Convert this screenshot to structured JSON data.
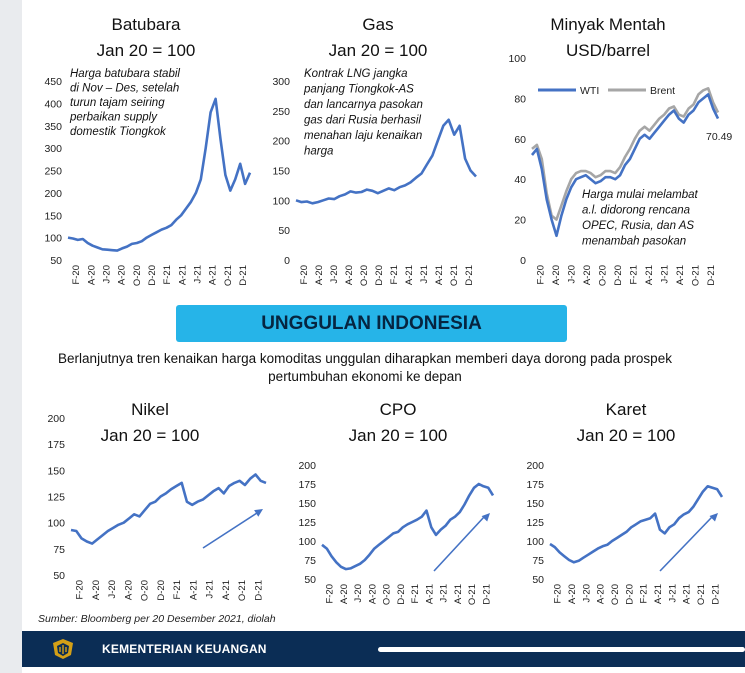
{
  "banner": "UNGGULAN INDONESIA",
  "description": "Berlanjutnya tren kenaikan harga komoditas unggulan diharapkan memberi daya dorong pada prospek pertumbuhan ekonomi ke depan",
  "source": "Sumber: Bloomberg per 20 Desember 2021, diolah",
  "footer": {
    "org": "KEMENTERIAN KEUANGAN",
    "logo_icon": "kemenkeu-emblem-icon"
  },
  "colors": {
    "line": "#4472c4",
    "brent": "#a6a6a6",
    "banner": "#26b4e8",
    "footer": "#0b2d55"
  },
  "chart_data": [
    {
      "id": "batubara",
      "type": "line",
      "title": "Batubara",
      "subtitle": "Jan 20 = 100",
      "annotation": [
        "Harga batubara stabil",
        "di Nov – Des, setelah",
        "turun tajam seiring",
        "perbaikan supply",
        "domestik Tiongkok"
      ],
      "ylim": [
        50,
        450
      ],
      "yticks": [
        50,
        100,
        150,
        200,
        250,
        300,
        350,
        400,
        450
      ],
      "xticks": [
        "F-20",
        "A-20",
        "J-20",
        "A-20",
        "O-20",
        "D-20",
        "F-21",
        "A-21",
        "J-21",
        "A-21",
        "O-21",
        "D-21"
      ],
      "series": [
        {
          "values": [
            100,
            98,
            95,
            97,
            88,
            82,
            78,
            74,
            73,
            72,
            71,
            76,
            80,
            86,
            88,
            92,
            100,
            106,
            112,
            118,
            122,
            128,
            140,
            150,
            165,
            180,
            200,
            230,
            300,
            380,
            410,
            320,
            240,
            205,
            230,
            265,
            220,
            245
          ]
        }
      ]
    },
    {
      "id": "gas",
      "type": "line",
      "title": "Gas",
      "subtitle": "Jan 20 = 100",
      "annotation": [
        "Kontrak LNG jangka",
        "panjang Tiongkok-AS",
        "dan lancarnya pasokan",
        "gas dari Rusia berhasil",
        "menahan laju kenaikan",
        "harga"
      ],
      "ylim": [
        0,
        300
      ],
      "yticks": [
        0,
        50,
        100,
        150,
        200,
        250,
        300
      ],
      "xticks": [
        "F-20",
        "A-20",
        "J-20",
        "A-20",
        "O-20",
        "D-20",
        "F-21",
        "A-21",
        "J-21",
        "A-21",
        "O-21",
        "D-21"
      ],
      "series": [
        {
          "values": [
            100,
            97,
            98,
            95,
            97,
            100,
            103,
            102,
            107,
            110,
            115,
            113,
            114,
            118,
            116,
            112,
            116,
            120,
            117,
            122,
            125,
            130,
            138,
            145,
            160,
            175,
            200,
            225,
            235,
            210,
            225,
            170,
            150,
            140
          ]
        }
      ]
    },
    {
      "id": "minyak",
      "type": "line",
      "title": "Minyak Mentah",
      "subtitle": "USD/barrel",
      "annotation": [
        "Harga mulai melambat",
        "a.l. didorong rencana",
        "OPEC, Rusia, dan AS",
        "menambah pasokan"
      ],
      "end_label": "70.49",
      "ylim": [
        0,
        100
      ],
      "yticks": [
        0,
        20,
        40,
        60,
        80,
        100
      ],
      "xticks": [
        "F-20",
        "A-20",
        "J-20",
        "A-20",
        "O-20",
        "D-20",
        "F-21",
        "A-21",
        "J-21",
        "A-21",
        "O-21",
        "D-21"
      ],
      "legend": [
        "WTI",
        "Brent"
      ],
      "series": [
        {
          "name": "WTI",
          "values": [
            52,
            55,
            45,
            30,
            20,
            12,
            22,
            30,
            36,
            40,
            41,
            42,
            40,
            38,
            39,
            41,
            41,
            40,
            42,
            47,
            50,
            55,
            60,
            62,
            60,
            63,
            66,
            69,
            72,
            74,
            70,
            68,
            72,
            74,
            78,
            80,
            82,
            75,
            70
          ]
        },
        {
          "name": "Brent",
          "values": [
            55,
            57,
            50,
            33,
            22,
            20,
            27,
            34,
            40,
            43,
            44,
            44,
            43,
            41,
            42,
            44,
            44,
            43,
            46,
            51,
            55,
            60,
            64,
            66,
            64,
            67,
            70,
            72,
            75,
            76,
            72,
            71,
            75,
            77,
            82,
            84,
            85,
            78,
            73
          ]
        }
      ]
    },
    {
      "id": "nikel",
      "type": "line",
      "title": "Nikel",
      "subtitle": "Jan 20 = 100",
      "ylim": [
        50,
        200
      ],
      "yticks": [
        50,
        75,
        100,
        125,
        150,
        175,
        200
      ],
      "xticks": [
        "F-20",
        "A-20",
        "J-20",
        "A-20",
        "O-20",
        "D-20",
        "F-21",
        "A-21",
        "J-21",
        "A-21",
        "O-21",
        "D-21"
      ],
      "series": [
        {
          "values": [
            93,
            92,
            85,
            82,
            80,
            84,
            88,
            92,
            95,
            98,
            100,
            104,
            108,
            106,
            112,
            118,
            120,
            125,
            128,
            132,
            135,
            138,
            120,
            117,
            120,
            122,
            126,
            130,
            133,
            128,
            135,
            138,
            140,
            136,
            142,
            146,
            140,
            138
          ]
        }
      ]
    },
    {
      "id": "cpo",
      "type": "line",
      "title": "CPO",
      "subtitle": "Jan 20 = 100",
      "ylim": [
        50,
        200
      ],
      "yticks": [
        50,
        75,
        100,
        125,
        150,
        175,
        200
      ],
      "xticks": [
        "F-20",
        "A-20",
        "J-20",
        "A-20",
        "O-20",
        "D-20",
        "F-21",
        "A-21",
        "J-21",
        "A-21",
        "O-21",
        "D-21"
      ],
      "series": [
        {
          "values": [
            95,
            90,
            80,
            72,
            66,
            63,
            64,
            67,
            70,
            75,
            82,
            90,
            95,
            100,
            105,
            110,
            112,
            118,
            122,
            125,
            128,
            132,
            140,
            118,
            108,
            115,
            120,
            128,
            132,
            138,
            148,
            160,
            170,
            175,
            172,
            170,
            160
          ]
        }
      ]
    },
    {
      "id": "karet",
      "type": "line",
      "title": "Karet",
      "subtitle": "Jan 20 = 100",
      "ylim": [
        50,
        200
      ],
      "yticks": [
        50,
        75,
        100,
        125,
        150,
        175,
        200
      ],
      "xticks": [
        "F-20",
        "A-20",
        "J-20",
        "A-20",
        "O-20",
        "D-20",
        "F-21",
        "A-21",
        "J-21",
        "A-21",
        "O-21",
        "D-21"
      ],
      "series": [
        {
          "values": [
            96,
            92,
            85,
            80,
            75,
            72,
            74,
            78,
            82,
            86,
            90,
            93,
            95,
            100,
            104,
            108,
            112,
            118,
            122,
            126,
            128,
            130,
            136,
            115,
            110,
            118,
            122,
            130,
            135,
            138,
            145,
            155,
            165,
            172,
            170,
            168,
            158
          ]
        }
      ]
    }
  ]
}
